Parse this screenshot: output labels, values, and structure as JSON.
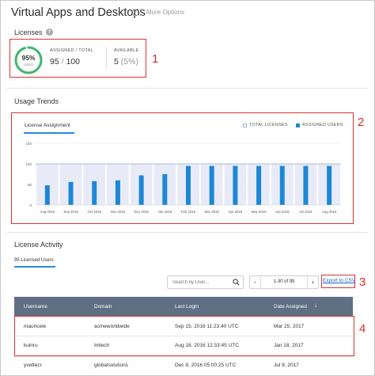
{
  "header": {
    "title": "Virtual Apps and Desktops",
    "more_options": "More Options"
  },
  "licenses": {
    "section_title": "Licenses",
    "percent": "95%",
    "used_label": "USED",
    "used_fraction": 0.95,
    "assigned_label": "ASSIGNED / TOTAL",
    "assigned": "95",
    "total": "100",
    "available_label": "AVAILABLE",
    "available": "5",
    "available_pct": "(5%)"
  },
  "callouts": [
    "1",
    "2",
    "3",
    "4"
  ],
  "usage": {
    "section_title": "Usage Trends",
    "tab_label": "License Assignment",
    "legend_total": "TOTAL LICENSES",
    "legend_assigned": "ASSIGNED USERS"
  },
  "chart_data": {
    "type": "bar",
    "categories": [
      "Aug 2018",
      "Sep 2018",
      "Oct 2018",
      "Nov 2018",
      "Dec 2018",
      "Jan 2019",
      "Feb 2019",
      "Mar 2019",
      "Apr 2019",
      "May 2019",
      "Jun 2019",
      "Jul 2019",
      "Aug 2019"
    ],
    "series": [
      {
        "name": "TOTAL LICENSES",
        "values": [
          100,
          100,
          100,
          100,
          100,
          100,
          100,
          100,
          100,
          100,
          100,
          100,
          100
        ]
      },
      {
        "name": "ASSIGNED USERS",
        "values": [
          48,
          56,
          58,
          60,
          72,
          75,
          95,
          95,
          95,
          95,
          95,
          95,
          95
        ]
      }
    ],
    "yticks": [
      "0",
      "50",
      "100",
      "150"
    ],
    "ylim": [
      0,
      150
    ],
    "colors": {
      "total": "#e8ebf7",
      "assigned": "#1d87d6",
      "total_line": "#9aa6d6"
    }
  },
  "activity": {
    "section_title": "License Activity",
    "sub_title": "95 Licensed Users",
    "search_placeholder": "Search by User...",
    "pager_text": "1-30 of 95",
    "export": "Export to CSV",
    "columns": {
      "username": "Username",
      "domain": "Domain",
      "last_login": "Last Login",
      "date_assigned": "Date Assigned"
    },
    "rows": [
      {
        "username": "mauricele",
        "domain": "acmeworldwide",
        "last_login": "Sep 15, 2016 11:23:40 UTC",
        "date_assigned": "Mar 25, 2017"
      },
      {
        "username": "kuinru",
        "domain": "Initech",
        "last_login": "Aug 18, 2016 12:33:45 UTC",
        "date_assigned": "Jan 18, 2017"
      },
      {
        "username": "yvettecr",
        "domain": "globalsolutions",
        "last_login": "Dec 8, 2016 05:00:25 UTC",
        "date_assigned": "Jul 9, 2017"
      }
    ]
  }
}
